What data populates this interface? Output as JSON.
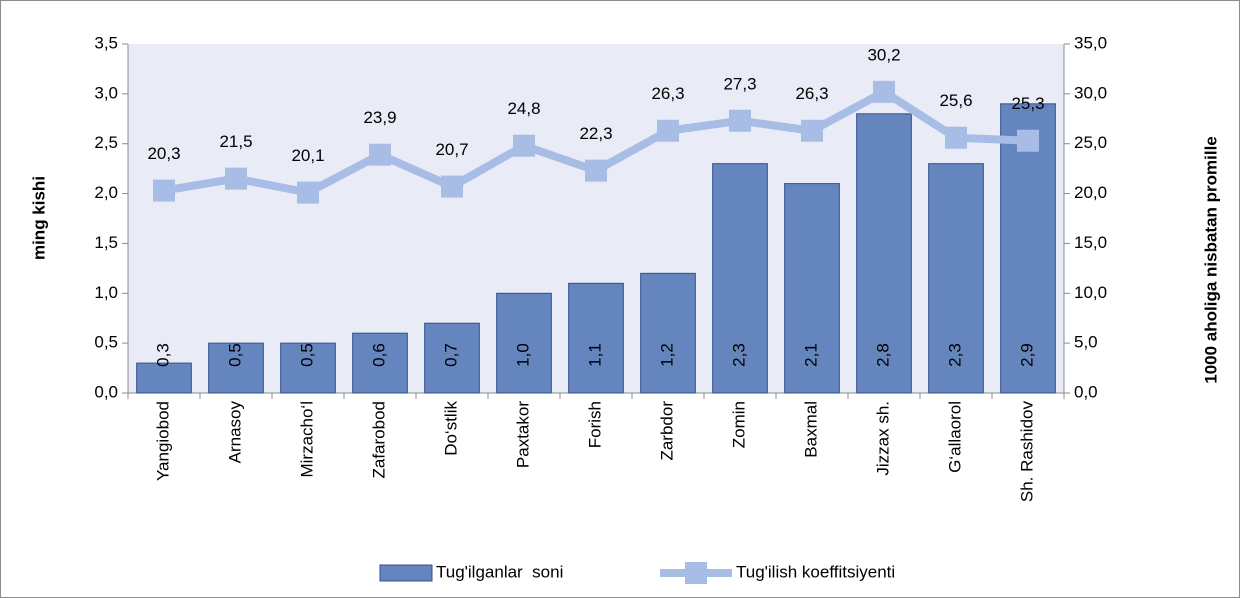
{
  "chart_data": {
    "type": "bar",
    "categories": [
      "Yangiobod",
      "Arnasoy",
      "Mirzacho‘l",
      "Zafarobod",
      "Do‘stlik",
      "Paxtakor",
      "Forish",
      "Zarbdor",
      "Zomin",
      "Baxmal",
      "Jizzax sh.",
      "G‘allaorol",
      "Sh. Rashidov"
    ],
    "y_label": "ming kishi",
    "y2_label": "1000 aholiga nisbatan promille",
    "ylim": [
      0,
      3.5
    ],
    "yticks": [
      {
        "value": 0,
        "label": "0,0"
      },
      {
        "value": 0.5,
        "label": "0,5"
      },
      {
        "value": 1,
        "label": "1,0"
      },
      {
        "value": 1.5,
        "label": "1,5"
      },
      {
        "value": 2,
        "label": "2,0"
      },
      {
        "value": 2.5,
        "label": "2,5"
      },
      {
        "value": 3,
        "label": "3,0"
      },
      {
        "value": 3.5,
        "label": "3,5"
      }
    ],
    "y2lim": [
      0,
      35
    ],
    "y2ticks": [
      {
        "value": 0,
        "label": "0,0"
      },
      {
        "value": 5,
        "label": "5,0"
      },
      {
        "value": 10,
        "label": "10,0"
      },
      {
        "value": 15,
        "label": "15,0"
      },
      {
        "value": 20,
        "label": "20,0"
      },
      {
        "value": 25,
        "label": "25,0"
      },
      {
        "value": 30,
        "label": "30,0"
      },
      {
        "value": 35,
        "label": "35,0"
      }
    ],
    "legend": "bottom",
    "series": [
      {
        "name": "Tug'ilganlar  soni",
        "type": "bar",
        "color": "#6585bf",
        "values": [
          0.3,
          0.5,
          0.5,
          0.6,
          0.7,
          1.0,
          1.1,
          1.2,
          2.3,
          2.1,
          2.8,
          2.3,
          2.9
        ],
        "value_labels": [
          "0,3",
          "0,5",
          "0,5",
          "0,6",
          "0,7",
          "1,0",
          "1,1",
          "1,2",
          "2,3",
          "2,1",
          "2,8",
          "2,3",
          "2,9"
        ]
      },
      {
        "name": "Tug'ilish koeffitsiyenti",
        "type": "line",
        "axis": "y2",
        "color": "#a7bde5",
        "values": [
          20.3,
          21.5,
          20.1,
          23.9,
          20.7,
          24.8,
          22.3,
          26.3,
          27.3,
          26.3,
          30.2,
          25.6,
          25.3
        ],
        "value_labels": [
          "20,3",
          "21,5",
          "20,1",
          "23,9",
          "20,7",
          "24,8",
          "22,3",
          "26,3",
          "27,3",
          "26,3",
          "30,2",
          "25,6",
          "25,3"
        ]
      }
    ]
  }
}
